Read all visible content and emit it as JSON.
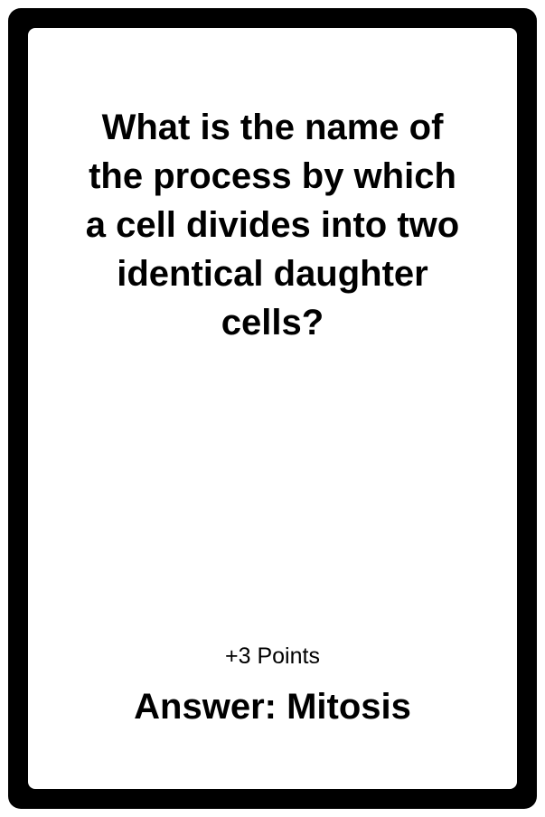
{
  "card": {
    "question_lines": [
      "What is the name of",
      "the process by which",
      "a cell divides into two",
      "identical daughter",
      "cells?"
    ],
    "points": "+3 Points",
    "answer": "Answer: Mitosis"
  },
  "colors": {
    "frame": "#000000",
    "background": "#ffffff",
    "text": "#000000"
  }
}
